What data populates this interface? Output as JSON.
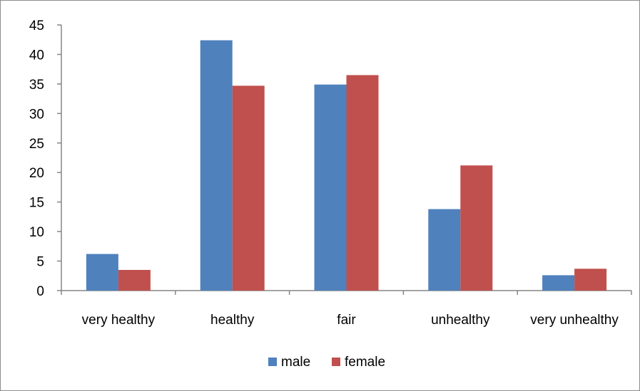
{
  "chart_data": {
    "type": "bar",
    "categories": [
      "very healthy",
      "healthy",
      "fair",
      "unhealthy",
      "very unhealthy"
    ],
    "series": [
      {
        "name": "male",
        "color": "#4f81bd",
        "values": [
          6.2,
          42.4,
          34.9,
          13.8,
          2.6
        ]
      },
      {
        "name": "female",
        "color": "#c0504d",
        "values": [
          3.5,
          34.7,
          36.5,
          21.2,
          3.7
        ]
      }
    ],
    "y_ticks": [
      "0",
      "5",
      "10",
      "15",
      "20",
      "25",
      "30",
      "35",
      "40",
      "45"
    ],
    "ylim": [
      0,
      45
    ],
    "grid": false,
    "legend_position": "bottom",
    "title": "",
    "xlabel": "",
    "ylabel": ""
  }
}
